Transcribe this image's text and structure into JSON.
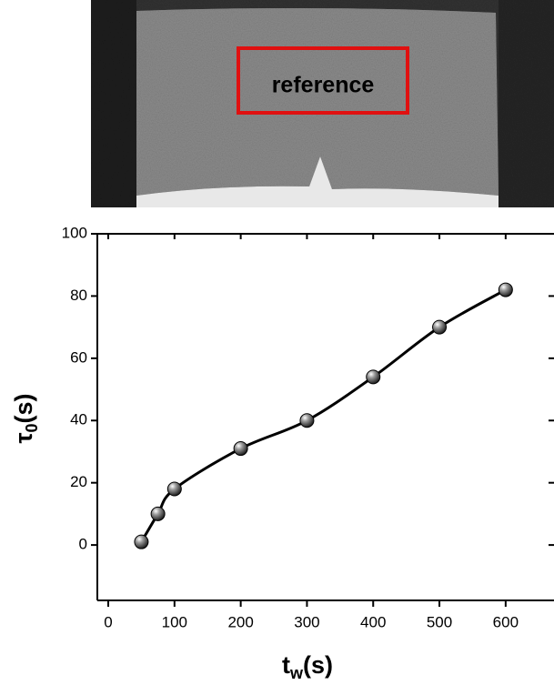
{
  "photo_label": "reference",
  "chart_data": {
    "type": "line",
    "x": [
      50,
      75,
      100,
      200,
      300,
      400,
      500,
      600
    ],
    "series": [
      {
        "color": "#000000",
        "values": [
          1,
          10,
          18,
          31,
          40,
          54,
          70,
          82
        ]
      }
    ],
    "xlim": [
      -16.5,
      673
    ],
    "xticks": [
      0,
      100,
      200,
      300,
      400,
      500,
      600
    ],
    "ylim": [
      -17.8,
      100
    ],
    "yticks": [
      0,
      20,
      40,
      60,
      80,
      100
    ],
    "xlabel_parts": [
      "t",
      "w",
      "(s)"
    ],
    "ylabel_parts": [
      "τ",
      "0",
      "(s)"
    ],
    "smooth": true
  }
}
